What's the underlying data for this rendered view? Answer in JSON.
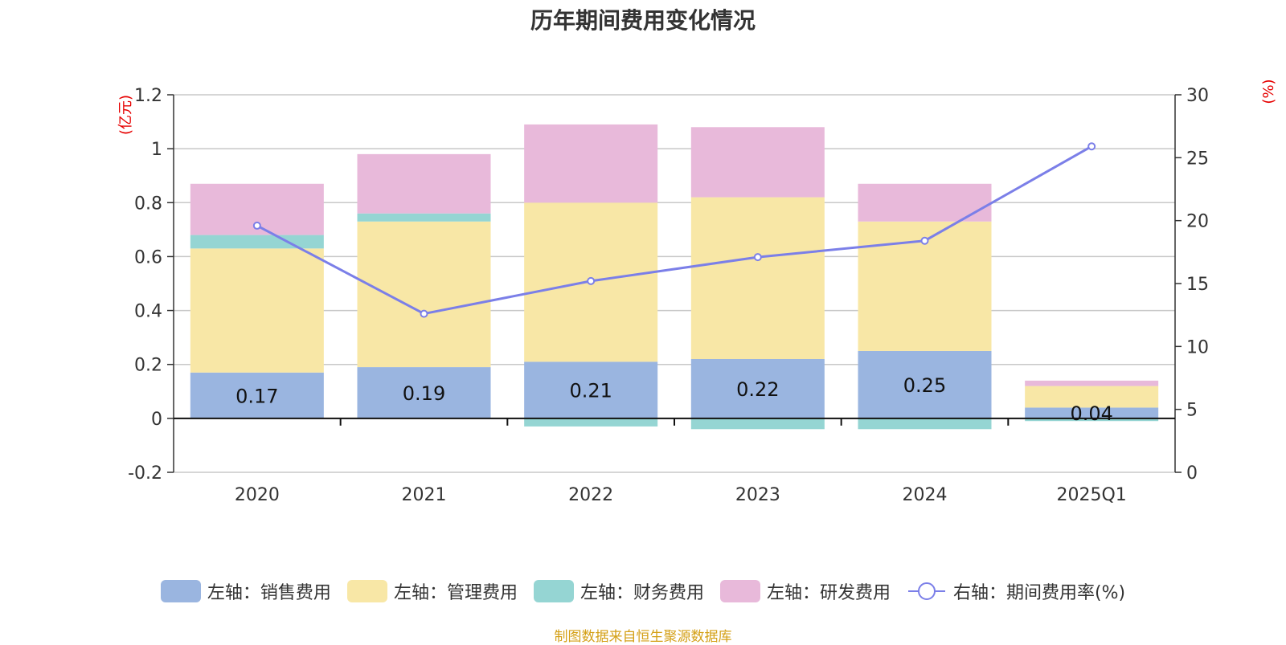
{
  "title": "历年期间费用变化情况",
  "source": "制图数据来自恒生聚源数据库",
  "chart_data": {
    "type": "bar",
    "stacked": true,
    "categories": [
      "2020",
      "2021",
      "2022",
      "2023",
      "2024",
      "2025Q1"
    ],
    "left_axis": {
      "unit": "(亿元)",
      "ylim": [
        -0.2,
        1.2
      ],
      "ticks": [
        "-0.2",
        "0",
        "0.2",
        "0.4",
        "0.6",
        "0.8",
        "1",
        "1.2"
      ],
      "tick_values": [
        -0.2,
        0,
        0.2,
        0.4,
        0.6,
        0.8,
        1,
        1.2
      ]
    },
    "right_axis": {
      "unit": "(%)",
      "ylim": [
        0,
        30
      ],
      "ticks": [
        "0",
        "5",
        "10",
        "15",
        "20",
        "25",
        "30"
      ],
      "tick_values": [
        0,
        5,
        10,
        15,
        20,
        25,
        30
      ]
    },
    "series": [
      {
        "name": "左轴：销售费用",
        "axis": "left",
        "color": "#9ab5e0",
        "values": [
          0.17,
          0.19,
          0.21,
          0.22,
          0.25,
          0.04
        ],
        "labels": [
          "0.17",
          "0.19",
          "0.21",
          "0.22",
          "0.25",
          "0.04"
        ]
      },
      {
        "name": "左轴：管理费用",
        "axis": "left",
        "color": "#f8e7a6",
        "values": [
          0.46,
          0.54,
          0.59,
          0.6,
          0.48,
          0.08
        ],
        "labels": []
      },
      {
        "name": "左轴：财务费用",
        "axis": "left",
        "color": "#95d5d3",
        "values": [
          0.05,
          0.03,
          -0.03,
          -0.04,
          -0.04,
          -0.01
        ],
        "labels": []
      },
      {
        "name": "左轴：研发费用",
        "axis": "left",
        "color": "#e8b9da",
        "values": [
          0.19,
          0.22,
          0.29,
          0.26,
          0.14,
          0.02
        ],
        "labels": []
      },
      {
        "name": "右轴：期间费用率(%)",
        "axis": "right",
        "type": "line",
        "color": "#7b7fe8",
        "values": [
          19.6,
          12.6,
          15.2,
          17.1,
          18.4,
          25.9
        ]
      }
    ]
  }
}
